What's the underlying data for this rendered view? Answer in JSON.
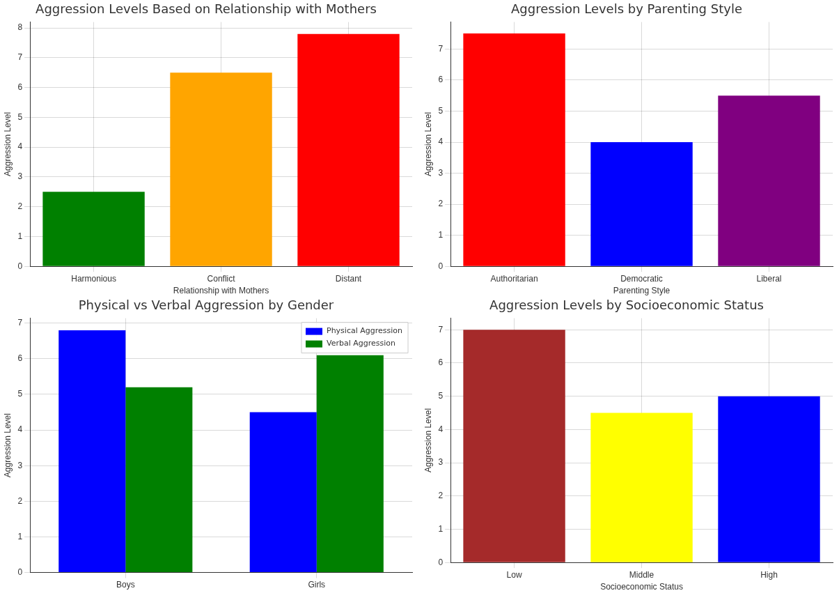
{
  "chart_data": [
    {
      "type": "bar",
      "title": "Aggression Levels Based on Relationship with Mothers",
      "xlabel": "Relationship with Mothers",
      "ylabel": "Aggression Level",
      "categories": [
        "Harmonious",
        "Conflict",
        "Distant"
      ],
      "values": [
        2.5,
        6.5,
        7.8
      ],
      "colors": [
        "#008000",
        "#ffa500",
        "#ff0000"
      ],
      "ylim": [
        0,
        8.2
      ],
      "yticks": [
        0,
        1,
        2,
        3,
        4,
        5,
        6,
        7,
        8
      ],
      "grid": true
    },
    {
      "type": "bar",
      "title": "Aggression Levels by Parenting Style",
      "xlabel": "Parenting Style",
      "ylabel": "Aggression Level",
      "categories": [
        "Authoritarian",
        "Democratic",
        "Liberal"
      ],
      "values": [
        7.5,
        4.0,
        5.5
      ],
      "colors": [
        "#ff0000",
        "#0000ff",
        "#800080"
      ],
      "ylim": [
        0,
        7.87
      ],
      "yticks": [
        0,
        1,
        2,
        3,
        4,
        5,
        6,
        7
      ],
      "grid": true
    },
    {
      "type": "bar",
      "title": "Physical vs Verbal Aggression by Gender",
      "ylabel": "Aggression Level",
      "categories": [
        "Boys",
        "Girls"
      ],
      "series": [
        {
          "name": "Physical Aggression",
          "color": "#0000ff",
          "values": [
            6.8,
            4.5
          ]
        },
        {
          "name": "Verbal Aggression",
          "color": "#008000",
          "values": [
            5.2,
            6.1
          ]
        }
      ],
      "ylim": [
        0,
        7.14
      ],
      "yticks": [
        0,
        1,
        2,
        3,
        4,
        5,
        6,
        7
      ],
      "grid": true,
      "legend": "top right"
    },
    {
      "type": "bar",
      "title": "Aggression Levels by Socioeconomic Status",
      "xlabel": "Socioeconomic Status",
      "ylabel": "Aggression Level",
      "categories": [
        "Low",
        "Middle",
        "High"
      ],
      "values": [
        7.0,
        4.5,
        5.0
      ],
      "colors": [
        "#a52a2a",
        "#ffff00",
        "#0000ff"
      ],
      "ylim": [
        0,
        7.35
      ],
      "yticks": [
        0,
        1,
        2,
        3,
        4,
        5,
        6,
        7
      ],
      "grid": true
    }
  ]
}
